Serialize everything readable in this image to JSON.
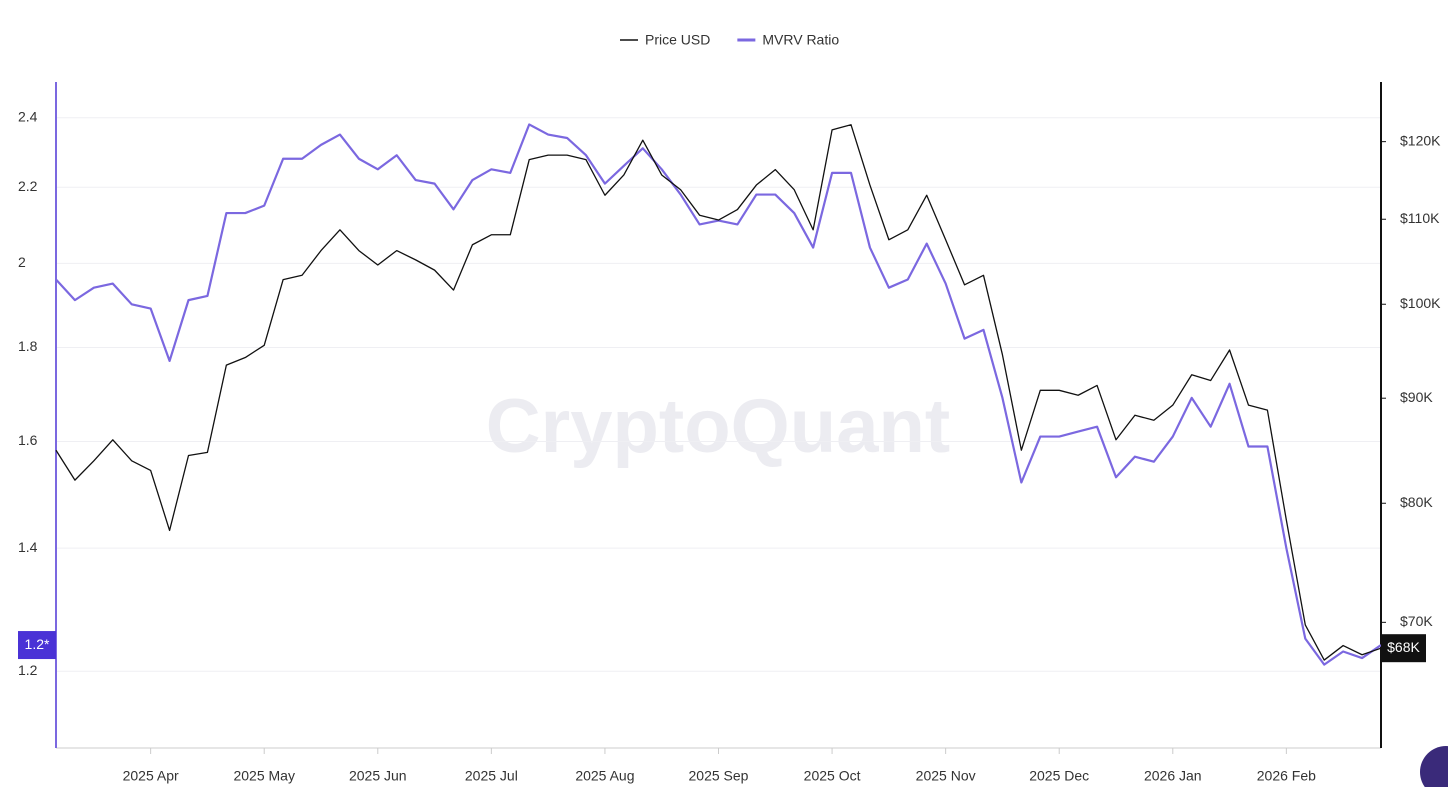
{
  "chart_data": {
    "type": "line",
    "watermark": "CryptoQuant",
    "categories": [
      null,
      null,
      null,
      null,
      null,
      "2025 Apr",
      null,
      null,
      null,
      null,
      null,
      "2025 May",
      null,
      null,
      null,
      null,
      null,
      "2025 Jun",
      null,
      null,
      null,
      null,
      null,
      "2025 Jul",
      null,
      null,
      null,
      null,
      null,
      "2025 Aug",
      null,
      null,
      null,
      null,
      null,
      "2025 Sep",
      null,
      null,
      null,
      null,
      null,
      "2025 Oct",
      null,
      null,
      null,
      null,
      null,
      "2025 Nov",
      null,
      null,
      null,
      null,
      null,
      "2025 Dec",
      null,
      null,
      null,
      null,
      null,
      "2026 Jan",
      null,
      null,
      null,
      null,
      null,
      "2026 Feb",
      null,
      null,
      null,
      null,
      null
    ],
    "series": [
      {
        "name": "Price USD",
        "color": "#111111",
        "axis": "y2",
        "last_label": "$68K",
        "values": [
          84900,
          82100,
          83900,
          85900,
          83900,
          83000,
          77600,
          84400,
          84700,
          93400,
          94200,
          95500,
          102800,
          103300,
          106200,
          108700,
          106200,
          104500,
          106200,
          105100,
          103900,
          101600,
          106900,
          108100,
          108100,
          117600,
          118200,
          118200,
          117600,
          113000,
          115600,
          120200,
          115600,
          113700,
          110500,
          109900,
          111200,
          114300,
          116300,
          113700,
          108700,
          121600,
          122300,
          114300,
          107500,
          108700,
          113000,
          107500,
          102200,
          103300,
          94500,
          84900,
          90800,
          90800,
          90300,
          91300,
          85900,
          88300,
          87800,
          89300,
          92400,
          91800,
          95000,
          89300,
          88800,
          78500,
          69800,
          67100,
          68200,
          67500,
          68000
        ]
      },
      {
        "name": "MVRV Ratio",
        "color": "#7b68e0",
        "axis": "y",
        "last_label": "1.2*",
        "values": [
          1.96,
          1.91,
          1.94,
          1.95,
          1.9,
          1.89,
          1.77,
          1.91,
          1.92,
          2.13,
          2.13,
          2.15,
          2.28,
          2.28,
          2.32,
          2.35,
          2.28,
          2.25,
          2.29,
          2.22,
          2.21,
          2.14,
          2.22,
          2.25,
          2.24,
          2.38,
          2.35,
          2.34,
          2.29,
          2.21,
          2.26,
          2.31,
          2.25,
          2.18,
          2.1,
          2.11,
          2.1,
          2.18,
          2.18,
          2.13,
          2.04,
          2.24,
          2.24,
          2.04,
          1.94,
          1.96,
          2.05,
          1.95,
          1.82,
          1.84,
          1.69,
          1.52,
          1.61,
          1.61,
          1.62,
          1.63,
          1.53,
          1.57,
          1.56,
          1.61,
          1.69,
          1.63,
          1.72,
          1.59,
          1.59,
          1.4,
          1.25,
          1.21,
          1.23,
          1.22,
          1.24
        ]
      }
    ],
    "y_scale": "log",
    "ylim": [
      1.09,
      2.51
    ],
    "yticks": [
      1.2,
      1.4,
      1.6,
      1.8,
      2,
      2.2,
      2.4
    ],
    "y2_scale": "log",
    "y2lim": [
      60800,
      128300
    ],
    "y2ticks": [
      {
        "value": 70000,
        "label": "$70K"
      },
      {
        "value": 80000,
        "label": "$80K"
      },
      {
        "value": 90000,
        "label": "$90K"
      },
      {
        "value": 100000,
        "label": "$100K"
      },
      {
        "value": 110000,
        "label": "$110K"
      },
      {
        "value": 120000,
        "label": "$120K"
      }
    ],
    "grid": true,
    "legend": "top"
  }
}
